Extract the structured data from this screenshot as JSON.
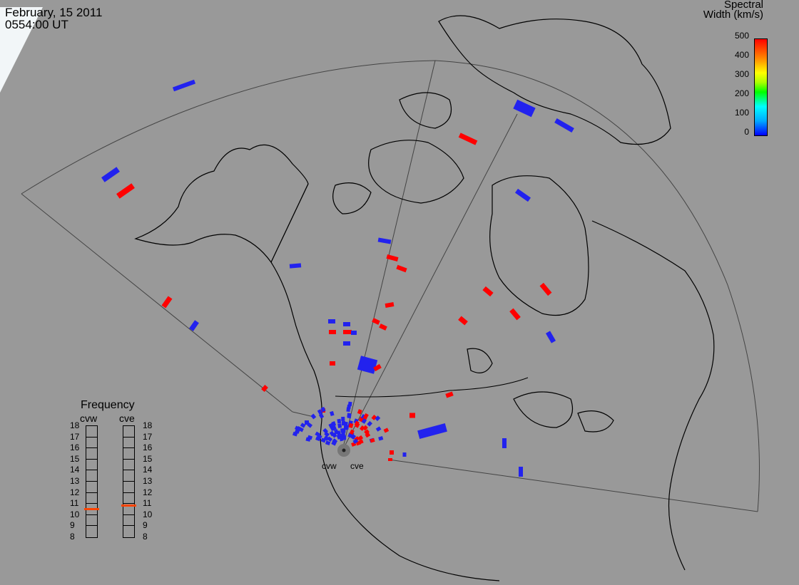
{
  "header": {
    "date": "February, 15 2011",
    "time": "0554:00 UT"
  },
  "colorbar": {
    "title_line1": "Spectral",
    "title_line2": "Width (km/s)",
    "ticks": [
      "500",
      "400",
      "300",
      "200",
      "100",
      "0"
    ]
  },
  "frequency": {
    "title": "Frequency",
    "left_label": "cvw",
    "right_label": "cve",
    "scale": [
      "18",
      "17",
      "16",
      "15",
      "14",
      "13",
      "12",
      "11",
      "10",
      "9",
      "8"
    ],
    "cvw_mhz": 10.5,
    "cve_mhz": 10.8
  },
  "radars": {
    "west": "cvw",
    "east": "cve"
  },
  "colors": {
    "background": "#999999",
    "coast": "#000000",
    "fov": "#333333",
    "low_width": "#2222ee",
    "high_width": "#ff0000"
  }
}
